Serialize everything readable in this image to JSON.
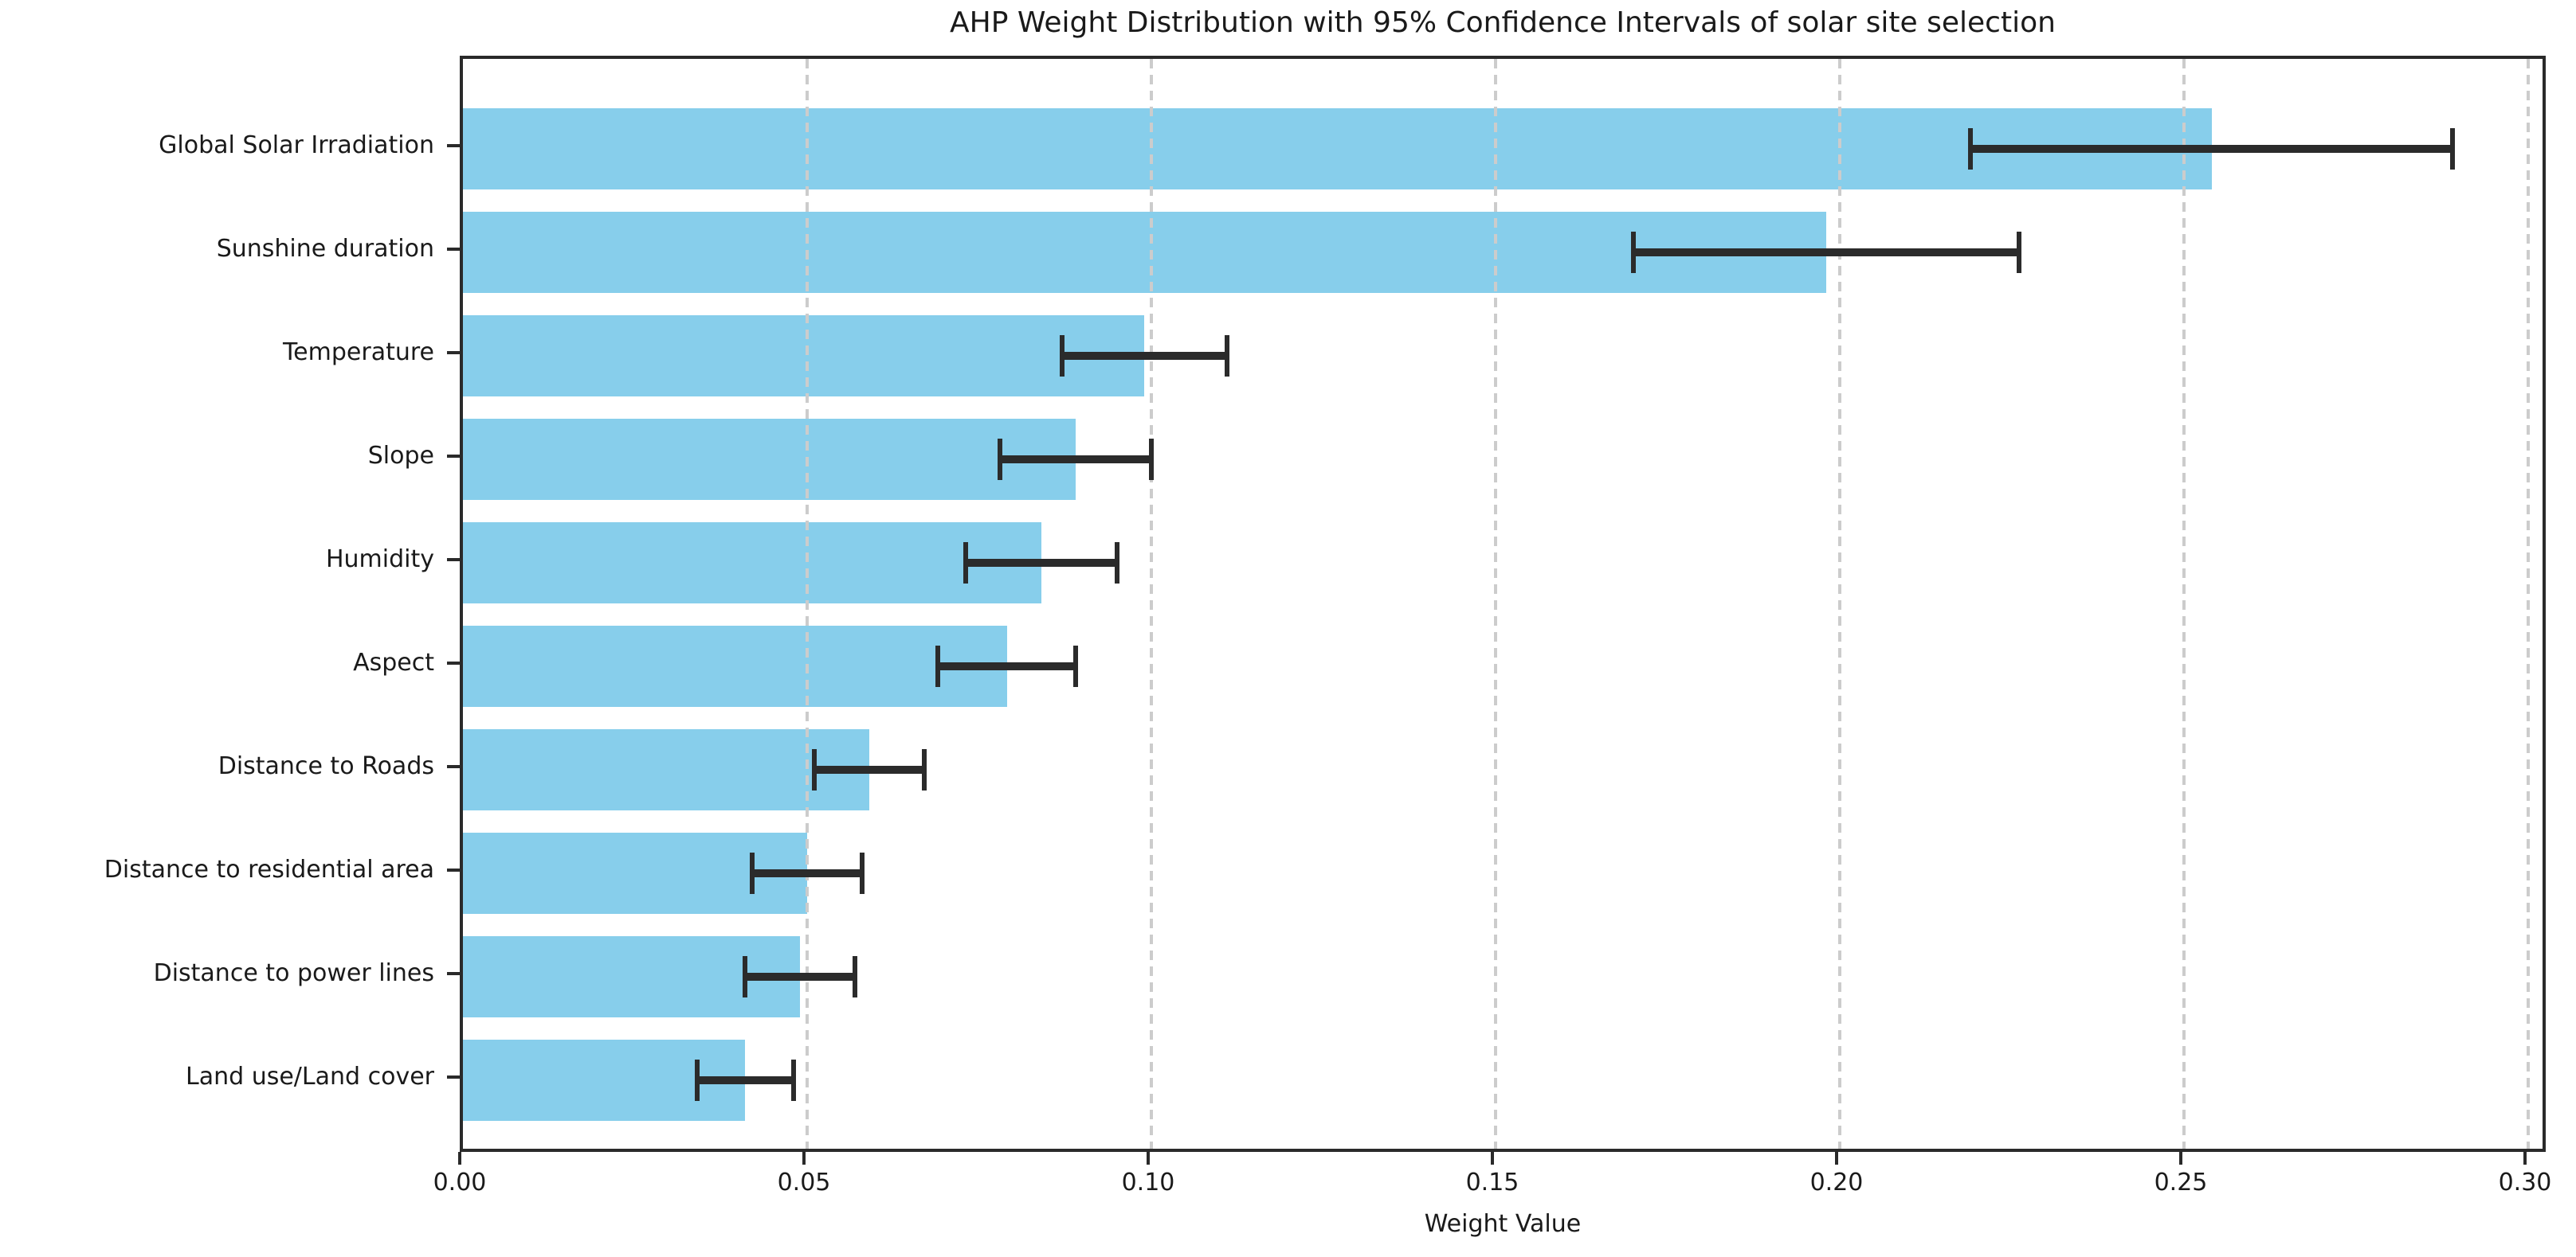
{
  "chart_data": {
    "type": "bar",
    "orientation": "horizontal",
    "title": "AHP Weight Distribution with 95% Confidence Intervals of solar site selection",
    "xlabel": "Weight Value",
    "categories": [
      "Global Solar Irradiation",
      "Sunshine duration",
      "Temperature",
      "Slope",
      "Humidity",
      "Aspect",
      "Distance to Roads",
      "Distance to residential area",
      "Distance to power lines",
      "Land use/Land cover"
    ],
    "values": [
      0.254,
      0.198,
      0.099,
      0.089,
      0.084,
      0.079,
      0.059,
      0.05,
      0.049,
      0.041
    ],
    "ci95_half_widths": [
      0.035,
      0.028,
      0.012,
      0.011,
      0.011,
      0.01,
      0.008,
      0.008,
      0.008,
      0.007
    ],
    "xticks": [
      0.0,
      0.05,
      0.1,
      0.15,
      0.2,
      0.25,
      0.3
    ],
    "xtick_labels": [
      "0.00",
      "0.05",
      "0.10",
      "0.15",
      "0.20",
      "0.25",
      "0.30"
    ],
    "xlim": [
      0,
      0.302
    ],
    "grid": {
      "axis": "x",
      "style": "dashed",
      "above_bars": true
    },
    "legend": null,
    "colors": {
      "bar": "#87CEEB",
      "error_bar": "#2b2b2b",
      "grid": "#cccccc",
      "spine": "#2a2a2a",
      "text": "#1a1a1a",
      "background": "#ffffff"
    }
  }
}
